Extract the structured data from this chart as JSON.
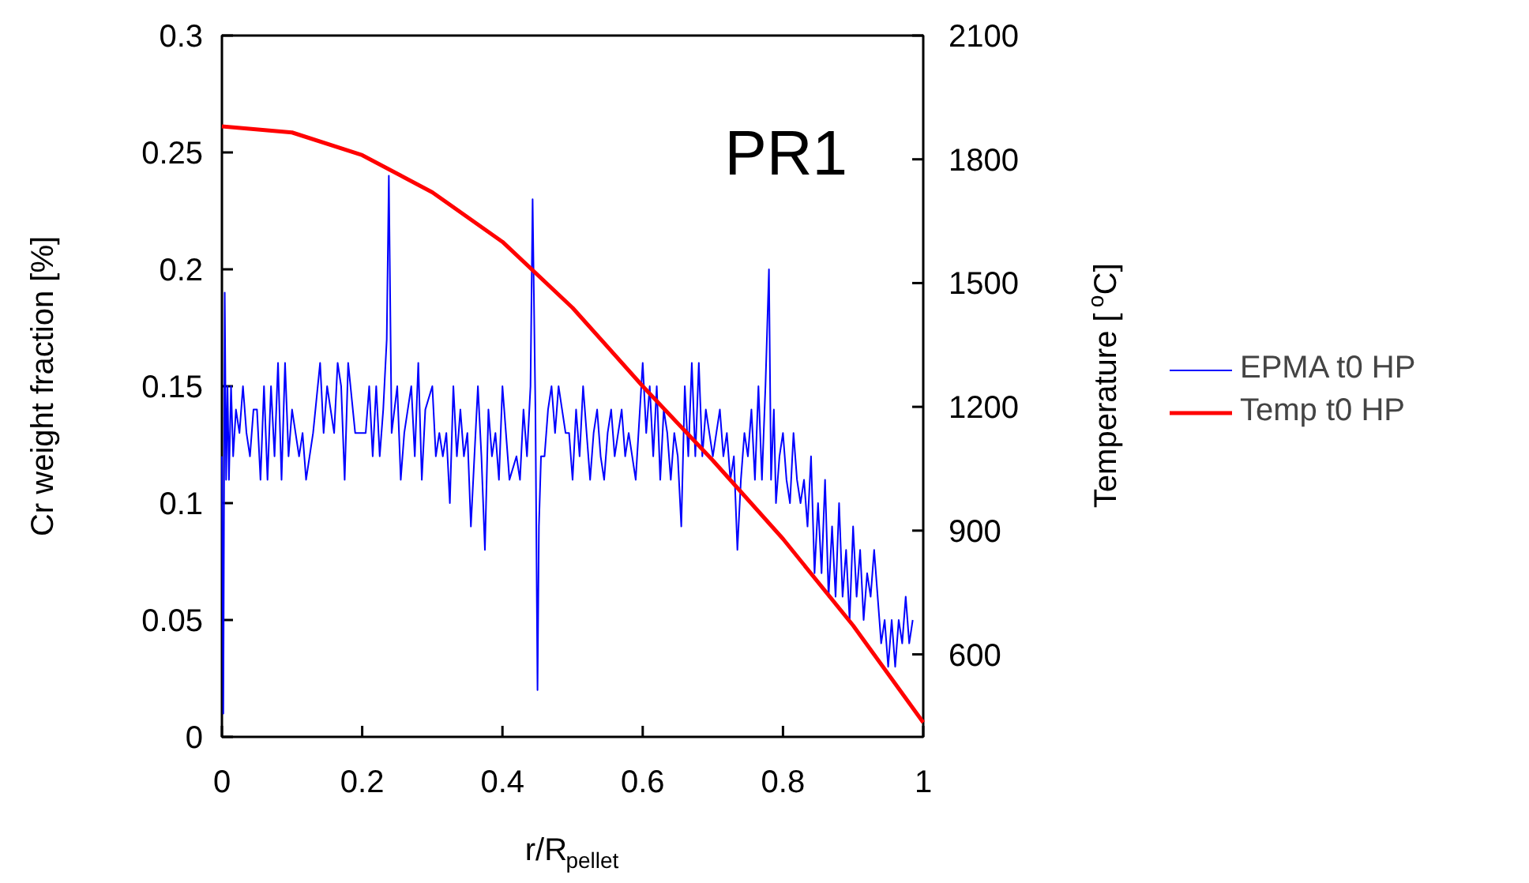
{
  "chart_data": {
    "type": "line",
    "title": "PR1",
    "xlabel": "r/R$_{pellet}$",
    "ylabel": "Cr weight fraction [%]",
    "y2label": "Temperature [$^{o}$C]",
    "xlim": [
      0,
      1
    ],
    "xticks": [
      0,
      0.2,
      0.4,
      0.6,
      0.8,
      1
    ],
    "ylim": [
      0,
      0.3
    ],
    "yticks": [
      0,
      0.05,
      0.1,
      0.15,
      0.2,
      0.25,
      0.3
    ],
    "y2lim": [
      400,
      2100
    ],
    "y2ticks": [
      600,
      900,
      1200,
      1500,
      1800,
      2100
    ],
    "grid": false,
    "legend": "right",
    "marker": "none",
    "line_style": "solid",
    "series": [
      {
        "name": "EPMA t0 HP",
        "color": "#0000ff",
        "x": [
          0,
          0.002,
          0.004,
          0.006,
          0.008,
          0.01,
          0.013,
          0.016,
          0.02,
          0.025,
          0.03,
          0.035,
          0.04,
          0.045,
          0.05,
          0.055,
          0.06,
          0.065,
          0.07,
          0.075,
          0.08,
          0.085,
          0.09,
          0.095,
          0.1,
          0.11,
          0.115,
          0.12,
          0.13,
          0.14,
          0.145,
          0.15,
          0.16,
          0.165,
          0.17,
          0.175,
          0.18,
          0.19,
          0.2,
          0.205,
          0.21,
          0.215,
          0.22,
          0.225,
          0.23,
          0.235,
          0.238,
          0.242,
          0.25,
          0.255,
          0.26,
          0.27,
          0.275,
          0.28,
          0.285,
          0.29,
          0.3,
          0.305,
          0.31,
          0.315,
          0.32,
          0.325,
          0.33,
          0.335,
          0.34,
          0.345,
          0.35,
          0.355,
          0.36,
          0.365,
          0.37,
          0.375,
          0.38,
          0.385,
          0.39,
          0.395,
          0.4,
          0.41,
          0.42,
          0.425,
          0.43,
          0.435,
          0.44,
          0.443,
          0.447,
          0.45,
          0.452,
          0.455,
          0.46,
          0.465,
          0.47,
          0.475,
          0.48,
          0.49,
          0.495,
          0.5,
          0.505,
          0.51,
          0.515,
          0.52,
          0.525,
          0.53,
          0.535,
          0.54,
          0.545,
          0.55,
          0.555,
          0.56,
          0.57,
          0.575,
          0.58,
          0.59,
          0.6,
          0.605,
          0.61,
          0.615,
          0.62,
          0.625,
          0.63,
          0.635,
          0.64,
          0.645,
          0.65,
          0.655,
          0.66,
          0.665,
          0.67,
          0.675,
          0.68,
          0.685,
          0.69,
          0.695,
          0.7,
          0.705,
          0.71,
          0.715,
          0.72,
          0.725,
          0.73,
          0.735,
          0.74,
          0.745,
          0.75,
          0.755,
          0.76,
          0.765,
          0.77,
          0.775,
          0.78,
          0.783,
          0.787,
          0.79,
          0.795,
          0.8,
          0.805,
          0.81,
          0.815,
          0.82,
          0.825,
          0.83,
          0.835,
          0.84,
          0.845,
          0.85,
          0.855,
          0.86,
          0.865,
          0.87,
          0.875,
          0.88,
          0.885,
          0.89,
          0.895,
          0.9,
          0.905,
          0.91,
          0.915,
          0.92,
          0.925,
          0.93,
          0.935,
          0.94,
          0.945,
          0.95,
          0.955,
          0.96,
          0.965,
          0.97,
          0.975,
          0.98,
          0.985
        ],
        "values": [
          0.12,
          0.01,
          0.19,
          0.11,
          0.15,
          0.11,
          0.15,
          0.12,
          0.14,
          0.13,
          0.15,
          0.13,
          0.12,
          0.14,
          0.14,
          0.11,
          0.15,
          0.11,
          0.15,
          0.12,
          0.16,
          0.11,
          0.16,
          0.12,
          0.14,
          0.12,
          0.13,
          0.11,
          0.13,
          0.16,
          0.13,
          0.15,
          0.13,
          0.16,
          0.15,
          0.11,
          0.16,
          0.13,
          0.13,
          0.13,
          0.15,
          0.12,
          0.15,
          0.12,
          0.14,
          0.17,
          0.24,
          0.13,
          0.15,
          0.11,
          0.13,
          0.15,
          0.12,
          0.16,
          0.11,
          0.14,
          0.15,
          0.12,
          0.13,
          0.12,
          0.13,
          0.1,
          0.15,
          0.12,
          0.14,
          0.12,
          0.13,
          0.09,
          0.12,
          0.15,
          0.12,
          0.08,
          0.14,
          0.12,
          0.13,
          0.11,
          0.15,
          0.11,
          0.12,
          0.11,
          0.14,
          0.12,
          0.15,
          0.23,
          0.14,
          0.02,
          0.09,
          0.12,
          0.12,
          0.14,
          0.15,
          0.13,
          0.15,
          0.13,
          0.13,
          0.11,
          0.14,
          0.12,
          0.15,
          0.13,
          0.11,
          0.13,
          0.14,
          0.12,
          0.11,
          0.13,
          0.14,
          0.12,
          0.14,
          0.12,
          0.13,
          0.11,
          0.16,
          0.13,
          0.15,
          0.12,
          0.15,
          0.11,
          0.14,
          0.13,
          0.11,
          0.13,
          0.12,
          0.09,
          0.15,
          0.12,
          0.16,
          0.12,
          0.16,
          0.12,
          0.14,
          0.13,
          0.12,
          0.13,
          0.14,
          0.12,
          0.13,
          0.11,
          0.12,
          0.08,
          0.11,
          0.13,
          0.12,
          0.14,
          0.11,
          0.15,
          0.11,
          0.15,
          0.2,
          0.11,
          0.14,
          0.1,
          0.12,
          0.13,
          0.11,
          0.1,
          0.13,
          0.11,
          0.1,
          0.11,
          0.09,
          0.12,
          0.07,
          0.1,
          0.07,
          0.11,
          0.06,
          0.09,
          0.06,
          0.1,
          0.06,
          0.08,
          0.05,
          0.09,
          0.06,
          0.08,
          0.05,
          0.07,
          0.06,
          0.08,
          0.06,
          0.04,
          0.05,
          0.03,
          0.05,
          0.03,
          0.05,
          0.04,
          0.06,
          0.04,
          0.05
        ]
      },
      {
        "name": "Temp t0 HP",
        "color": "#ff0000",
        "axis": "y2",
        "x": [
          0,
          0.1,
          0.2,
          0.3,
          0.4,
          0.5,
          0.6,
          0.7,
          0.8,
          0.9,
          1
        ],
        "values": [
          1880,
          1865,
          1810,
          1720,
          1600,
          1440,
          1250,
          1070,
          880,
          670,
          435
        ]
      }
    ]
  }
}
